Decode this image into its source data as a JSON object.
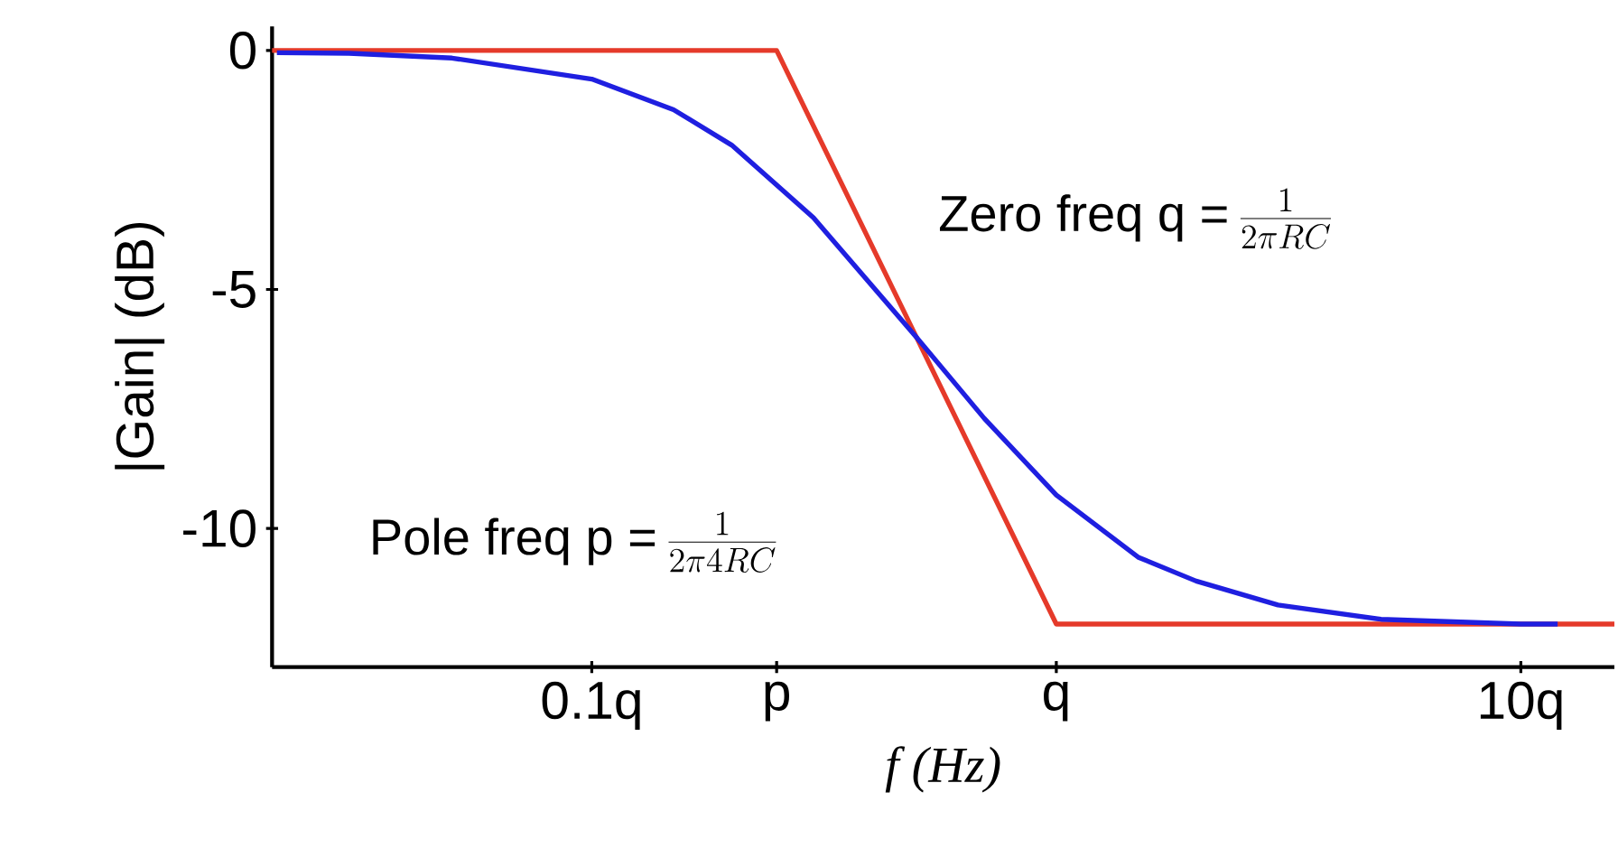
{
  "chart_data": {
    "type": "line",
    "xlabel": "f (Hz)",
    "ylabel": "|Gain| (dB)",
    "log": "x",
    "xlim": [
      0.0205,
      15.9
    ],
    "ylim": [
      -12.9,
      0.5
    ],
    "xticks": [
      {
        "value": 0.1,
        "label": "0.1q"
      },
      {
        "value": 0.25,
        "label": "p"
      },
      {
        "value": 1,
        "label": "q"
      },
      {
        "value": 10,
        "label": "10q"
      }
    ],
    "yticks": [
      0,
      -5,
      -10
    ],
    "series": [
      {
        "color": "#e53a2a",
        "x": [
          0.0205,
          0.25,
          1,
          15.9
        ],
        "values": [
          0,
          0,
          -12,
          -12
        ]
      },
      {
        "color": "#1f1fe0",
        "x": [
          0.021,
          0.03,
          0.05,
          0.1,
          0.15,
          0.2,
          0.3,
          0.5,
          0.7,
          1,
          1.5,
          2,
          3,
          5,
          10,
          12
        ],
        "values": [
          -0.05,
          -0.06,
          -0.16,
          -0.6,
          -1.24,
          -1.98,
          -3.5,
          -6.0,
          -7.7,
          -9.3,
          -10.6,
          -11.1,
          -11.6,
          -11.9,
          -12.0,
          -12.0
        ]
      }
    ],
    "annotations": [
      "Zero freq q =",
      "\\frac{1}{2\\pi RC}",
      "Pole freq p =",
      "\\frac{1}{2\\pi 4RC}"
    ]
  }
}
